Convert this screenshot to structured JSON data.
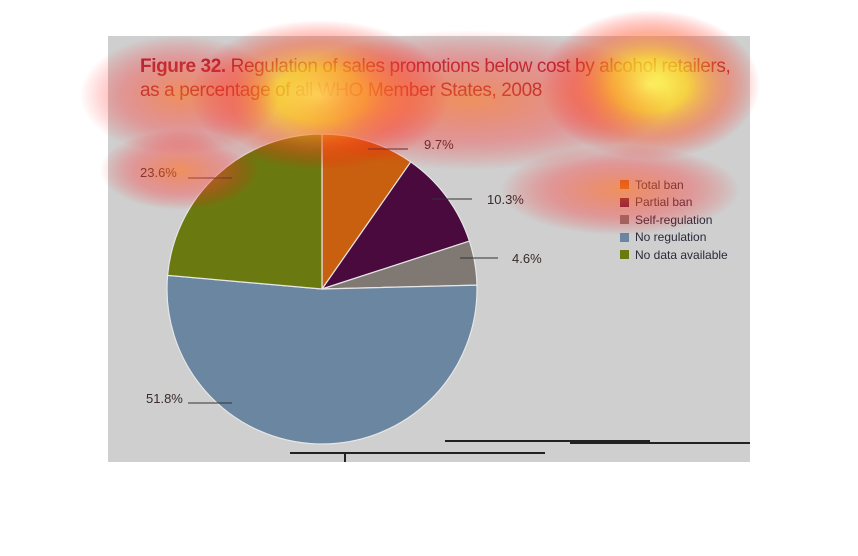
{
  "title": {
    "figure": "Figure 32.",
    "text": "Regulation of sales promotions below cost by alcohol retailers,",
    "line2": "as a percentage of all WHO Member States, 2008"
  },
  "chart_data": {
    "type": "pie",
    "title": "Figure 32. Regulation of sales promotions below cost by alcohol retailers, as a percentage of all WHO Member States, 2008",
    "slices": [
      {
        "label": "Total ban",
        "value": 9.7,
        "display": "9.7%",
        "color": "#c8600f"
      },
      {
        "label": "Partial ban",
        "value": 10.3,
        "display": "10.3%",
        "color": "#4a0a3e"
      },
      {
        "label": "Self-regulation",
        "value": 4.6,
        "display": "4.6%",
        "color": "#7f7873"
      },
      {
        "label": "No regulation",
        "value": 51.8,
        "display": "51.8%",
        "color": "#6b86a0"
      },
      {
        "label": "No data available",
        "value": 23.6,
        "display": "23.6%",
        "color": "#6b7a10"
      }
    ],
    "legend_position": "right"
  }
}
